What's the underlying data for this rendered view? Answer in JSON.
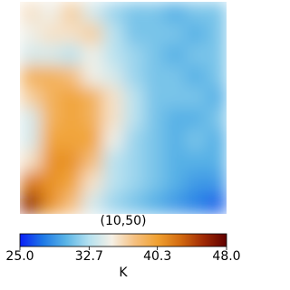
{
  "chart_data": {
    "type": "heatmap",
    "title": "(10,50)",
    "values": [
      [
        36,
        35,
        37,
        34,
        32,
        31,
        31,
        30,
        31,
        31
      ],
      [
        35,
        36,
        36,
        37,
        33,
        31,
        31,
        31,
        30,
        31
      ],
      [
        34,
        34,
        33,
        35,
        33,
        32,
        31,
        30,
        31,
        31
      ],
      [
        39,
        39,
        38,
        35,
        34,
        32,
        31,
        31,
        30,
        31
      ],
      [
        37,
        39,
        40,
        39,
        36,
        33,
        31,
        31,
        31,
        30
      ],
      [
        34,
        39,
        40,
        39,
        36,
        33,
        31,
        30,
        30,
        31
      ],
      [
        34,
        40,
        40,
        40,
        35,
        32,
        31,
        30,
        31,
        30
      ],
      [
        36,
        41,
        41,
        38,
        33,
        32,
        31,
        30,
        30,
        30
      ],
      [
        42,
        41,
        40,
        36,
        33,
        32,
        31,
        30,
        29,
        29
      ],
      [
        46,
        41,
        38,
        34,
        32,
        31,
        30,
        29,
        28,
        27
      ]
    ],
    "colormap": [
      "#0a1ef5",
      "#1e78e6",
      "#5ab4e6",
      "#b4e1f0",
      "#f5f0e6",
      "#f5c080",
      "#f0a030",
      "#d26a10",
      "#a02a05",
      "#600000"
    ],
    "colorbar": {
      "label": "K",
      "lim": [
        25,
        48
      ],
      "ticks": [
        {
          "value": 25,
          "label": "25.0"
        },
        32.7,
        40.3,
        {
          "value": 48,
          "label": "48.0"
        }
      ]
    }
  }
}
